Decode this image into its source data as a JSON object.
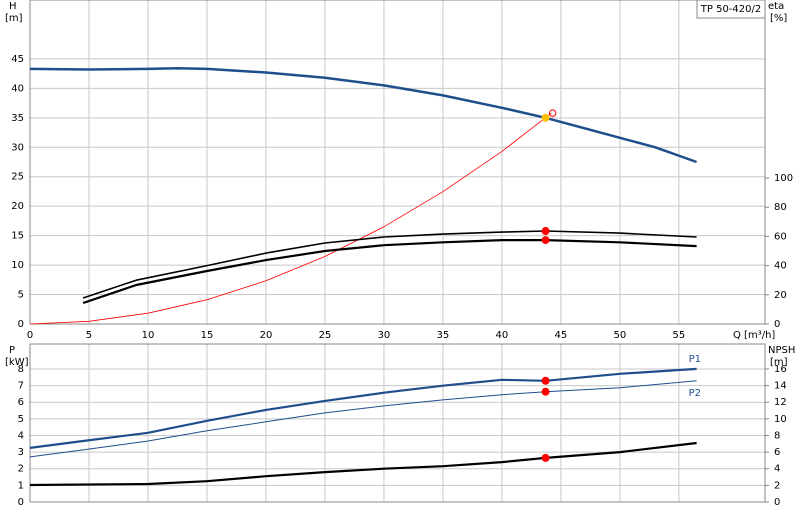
{
  "chart_data": [
    {
      "type": "line",
      "ylabel": "H",
      "yunit": "[m]",
      "y2label": "eta",
      "y2unit": "[%]",
      "xlabel": "Q [m³/h]",
      "model": "TP 50-420/2",
      "xlim": [
        0,
        62.3
      ],
      "xticks": [
        0,
        5,
        10,
        15,
        20,
        25,
        30,
        35,
        40,
        45,
        50,
        55
      ],
      "ylim": [
        0,
        55
      ],
      "yticks": [
        0,
        5,
        10,
        15,
        20,
        25,
        30,
        35,
        40,
        45
      ],
      "y2lim": [
        0,
        222
      ],
      "y2ticks": [
        0,
        20,
        40,
        60,
        80,
        100
      ],
      "grid": true,
      "series": [
        {
          "color": "#1f4e8c",
          "width": 2.5,
          "x": [
            0,
            5,
            10,
            12.5,
            15,
            20,
            25,
            30,
            35,
            40,
            43.7,
            45,
            50,
            53,
            56.5
          ],
          "values": [
            43.3,
            43.2,
            43.3,
            43.4,
            43.3,
            42.7,
            41.8,
            40.5,
            38.8,
            36.7,
            35,
            34.3,
            31.6,
            30,
            27.5
          ]
        },
        {
          "color": "#ff0000",
          "width": 0.8,
          "x": [
            0,
            5,
            10,
            15,
            20,
            25,
            30,
            35,
            40,
            44.2
          ],
          "values": [
            0,
            0.46,
            1.83,
            4.12,
            7.33,
            11.46,
            16.5,
            22.45,
            29.3,
            35.8
          ]
        },
        {
          "color": "#000000",
          "width": 1.6,
          "axis": "y2",
          "x": [
            4.5,
            9,
            15,
            20,
            25,
            30,
            35,
            40,
            43.7,
            50,
            56.5
          ],
          "values": [
            17.8,
            30,
            40,
            48.6,
            55.5,
            59.6,
            61.6,
            63,
            63.7,
            62.3,
            59.6
          ]
        },
        {
          "color": "#000000",
          "width": 2.2,
          "axis": "y2",
          "x": [
            4.5,
            9,
            15,
            20,
            25,
            30,
            35,
            40,
            43.7,
            50,
            56.5
          ],
          "values": [
            14.4,
            26.7,
            36.3,
            43.8,
            50,
            54,
            56,
            57.5,
            57.5,
            56,
            53.4
          ]
        }
      ],
      "points": [
        {
          "x": 43.7,
          "y": 63.7,
          "axis": "y2",
          "color": "#ff0000",
          "fill": true
        },
        {
          "x": 43.7,
          "y": 57.5,
          "axis": "y2",
          "color": "#ff0000",
          "fill": true
        },
        {
          "x": 44.3,
          "y": 35.8,
          "color": "#ff0000",
          "fill": false
        },
        {
          "x": 43.7,
          "y": 35,
          "color": "#ffc000",
          "fill": true
        }
      ]
    },
    {
      "type": "line",
      "ylabel": "P",
      "yunit": "[kW]",
      "y2label": "NPSH",
      "y2unit": "[m]",
      "xlim": [
        0,
        62.3
      ],
      "xticks": [
        0,
        5,
        10,
        15,
        20,
        25,
        30,
        35,
        40,
        45,
        50,
        55
      ],
      "ylim": [
        0,
        9.5
      ],
      "yticks": [
        0,
        1,
        2,
        3,
        4,
        5,
        6,
        7,
        8
      ],
      "y2lim": [
        0,
        19
      ],
      "y2ticks": [
        0,
        2,
        4,
        6,
        8,
        10,
        12,
        14,
        16
      ],
      "grid": true,
      "series": [
        {
          "name": "P1",
          "color": "#1f4e8c",
          "width": 2.2,
          "x": [
            0,
            4.5,
            10,
            15,
            20,
            25,
            30,
            35,
            40,
            43.7,
            50,
            56.5
          ],
          "values": [
            3.25,
            3.67,
            4.16,
            4.88,
            5.54,
            6.08,
            6.57,
            6.99,
            7.35,
            7.29,
            7.71,
            8.0
          ]
        },
        {
          "name": "P2",
          "color": "#1f4e8c",
          "width": 1,
          "x": [
            0,
            4.5,
            10,
            15,
            20,
            25,
            30,
            35,
            40,
            43.7,
            50,
            56.5
          ],
          "values": [
            2.71,
            3.13,
            3.67,
            4.28,
            4.82,
            5.36,
            5.78,
            6.14,
            6.45,
            6.63,
            6.87,
            7.29
          ]
        },
        {
          "color": "#000000",
          "width": 2.2,
          "axis": "y2",
          "x": [
            0,
            10,
            15,
            20,
            25,
            30,
            35,
            40,
            43.7,
            50,
            56.5
          ],
          "values": [
            2.05,
            2.17,
            2.5,
            3.1,
            3.6,
            4.0,
            4.3,
            4.8,
            5.3,
            6.0,
            7.1
          ]
        }
      ],
      "points": [
        {
          "x": 43.7,
          "y": 7.29,
          "color": "#ff0000",
          "fill": true
        },
        {
          "x": 43.7,
          "y": 6.63,
          "color": "#ff0000",
          "fill": true
        },
        {
          "x": 43.7,
          "y": 5.3,
          "axis": "y2",
          "color": "#ff0000",
          "fill": true
        }
      ]
    }
  ]
}
